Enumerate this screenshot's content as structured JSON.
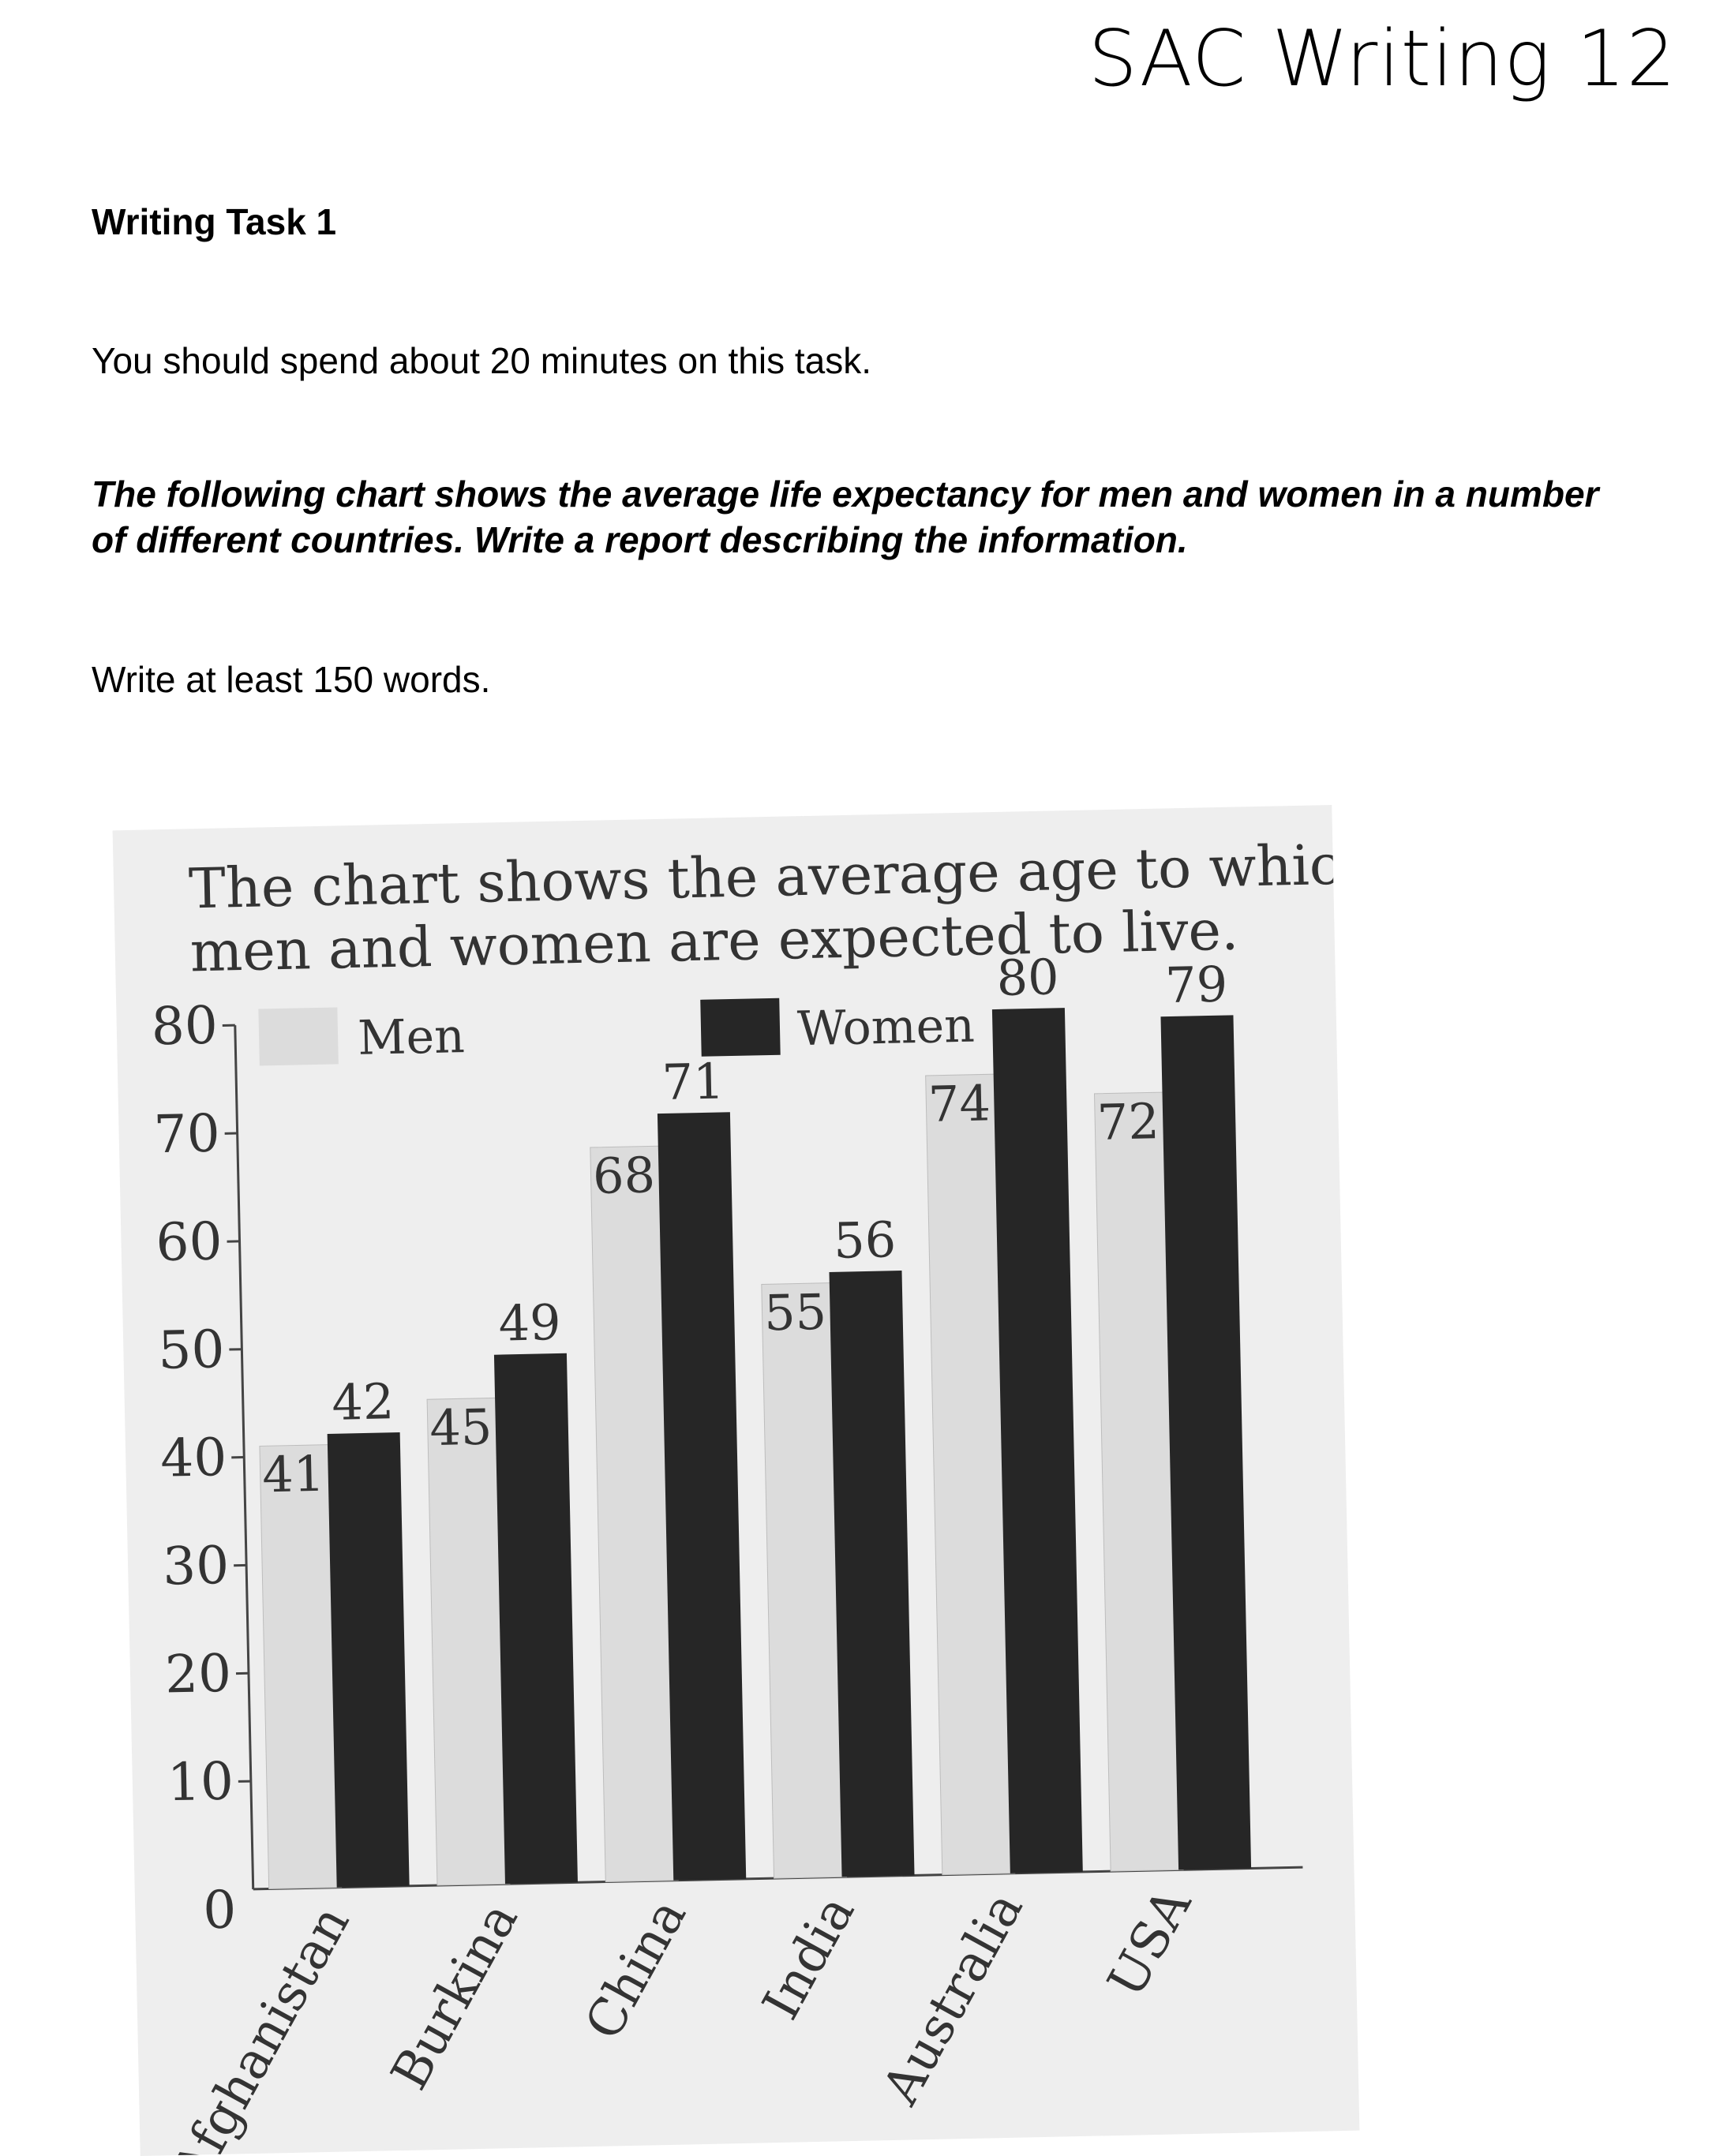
{
  "header": {
    "title": "SAC Writing 12"
  },
  "task": {
    "heading": "Writing Task 1",
    "time_instruction": "You should spend about 20 minutes on this task.",
    "prompt": "The following chart shows the average life expectancy for men and women in a number of different countries. Write a report describing the information.",
    "word_instruction": "Write at least 150 words."
  },
  "colors": {
    "men_bar": "#dcdcdc",
    "women_bar": "#262626",
    "axis": "#444444",
    "text": "#333333",
    "photo_bg": "#eeeeee"
  },
  "chart_data": {
    "type": "bar",
    "caption_lines": [
      "The chart shows the average age to which",
      "men and women are expected to live."
    ],
    "categories": [
      "Afghanistan",
      "Burkina",
      "China",
      "India",
      "Australia",
      "USA"
    ],
    "series": [
      {
        "name": "Men",
        "values": [
          41,
          45,
          68,
          55,
          74,
          72
        ]
      },
      {
        "name": "Women",
        "values": [
          42,
          49,
          71,
          56,
          80,
          79
        ]
      }
    ],
    "y_ticks": [
      0,
      10,
      20,
      30,
      40,
      50,
      60,
      70,
      80
    ],
    "ylim": [
      0,
      80
    ],
    "legend_position": "top",
    "grid": false
  }
}
